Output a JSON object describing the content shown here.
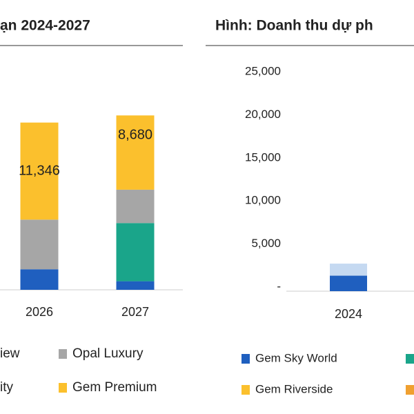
{
  "chart_data": [
    {
      "type": "bar",
      "title": "ạn 2024-2027",
      "categories": [
        "2026",
        "2027"
      ],
      "series": [
        {
          "name": "ity",
          "color": "#1f5fbf",
          "values": [
            2400,
            1000
          ]
        },
        {
          "name": "iew",
          "color": "#1aa58a",
          "values": [
            null,
            6800
          ]
        },
        {
          "name": "Opal Luxury",
          "color": "#a6a6a6",
          "values": [
            5800,
            3900
          ]
        },
        {
          "name": "Gem Premium",
          "color": "#fbc02d",
          "values": [
            11346,
            8680
          ],
          "value_labels": [
            "11,346",
            "8,680"
          ]
        }
      ],
      "ylim": [
        0,
        25000
      ],
      "stacked": true
    },
    {
      "type": "bar",
      "title": "Hình: Doanh thu dự ph",
      "categories": [
        "2024"
      ],
      "series": [
        {
          "name": "Gem Sky World",
          "color": "#1f5fbf",
          "values": [
            1800
          ]
        },
        {
          "color": "#c5d9f1",
          "values": [
            1400
          ]
        },
        {
          "name": "Gem Riverside",
          "color": "#fbc02d",
          "values": [
            null
          ]
        }
      ],
      "ylim": [
        0,
        25000
      ],
      "yticks": [
        {
          "value": 0,
          "label": "-"
        },
        {
          "value": 5000,
          "label": "5,000"
        },
        {
          "value": 10000,
          "label": "10,000"
        },
        {
          "value": 15000,
          "label": "15,000"
        },
        {
          "value": 20000,
          "label": "20,000"
        },
        {
          "value": 25000,
          "label": "25,000"
        }
      ],
      "stacked": true
    }
  ]
}
